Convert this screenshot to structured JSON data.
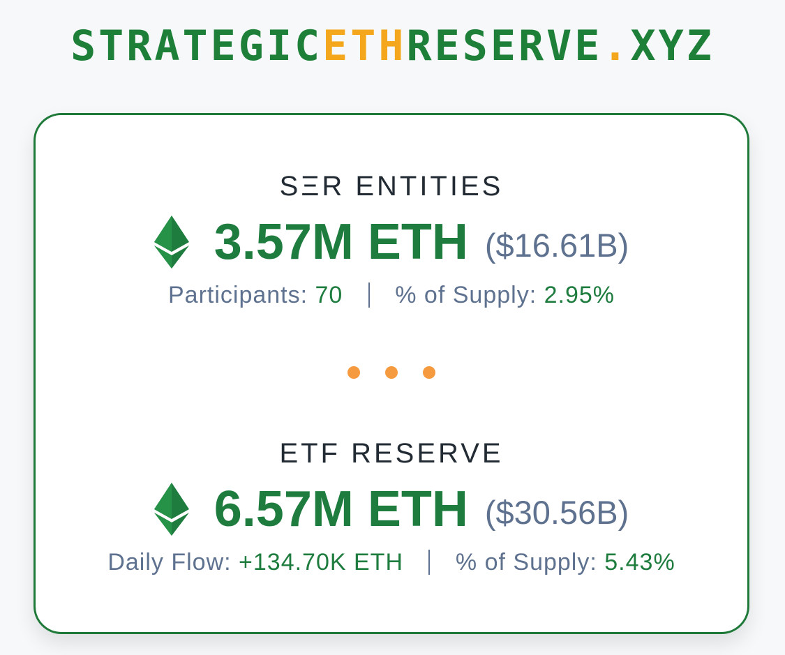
{
  "header": {
    "title_part1": "STRATEGIC",
    "title_accent": "ETH",
    "title_part2": "RESERVE",
    "title_dot": ".",
    "title_tld": "XYZ"
  },
  "ser": {
    "title": "SΞR ENTITIES",
    "amount": "3.57M ETH",
    "usd": "($16.61B)",
    "stat1_label": "Participants: ",
    "stat1_value": "70",
    "stat2_label": "% of Supply: ",
    "stat2_value": "2.95%"
  },
  "etf": {
    "title": "ETF RESERVE",
    "amount": "6.57M ETH",
    "usd": "($30.56B)",
    "stat1_label": "Daily Flow: ",
    "stat1_value": "+134.70K ETH",
    "stat2_label": "% of Supply: ",
    "stat2_value": "5.43%"
  },
  "icons": {
    "currency": "ethereum-icon",
    "divider": "ellipsis-dots"
  },
  "colors": {
    "brand_green": "#1e7c3e",
    "accent_orange": "#f4a71c",
    "muted_blue_gray": "#5e7290",
    "dot_orange": "#f59a3f",
    "card_border": "#1f7a3a"
  }
}
